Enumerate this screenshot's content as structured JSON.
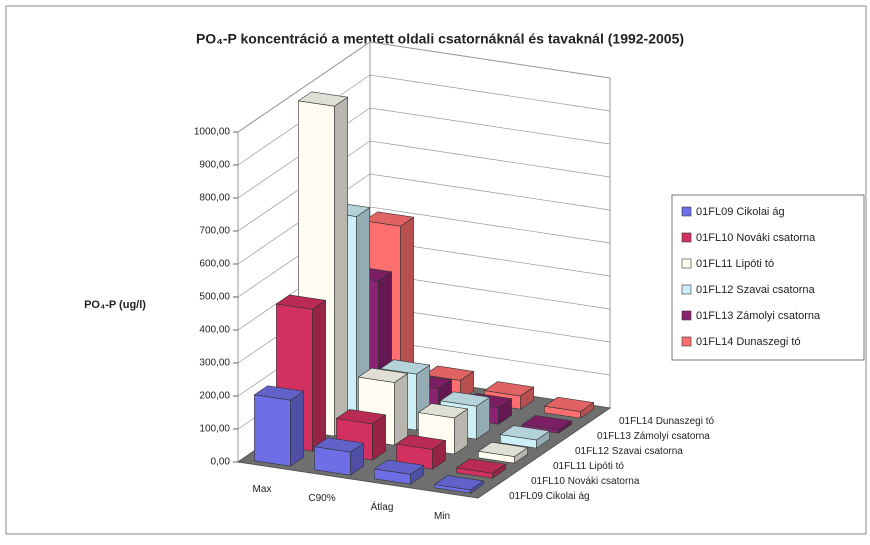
{
  "chart_data": {
    "type": "bar3d",
    "title": "PO₄-P koncentráció a mentett oldali csatornáknál és tavaknál (1992-2005)",
    "y_label": "PO₄-P (ug/l)",
    "categories": [
      "Max",
      "C90%",
      "Átlag",
      "Min"
    ],
    "series": [
      {
        "name": "01FL09 Cikolai ág",
        "color": "#6e6ee6",
        "values": [
          200,
          70,
          30,
          10
        ]
      },
      {
        "name": "01FL10 Nováki csatorna",
        "color": "#d23060",
        "values": [
          430,
          110,
          60,
          15
        ]
      },
      {
        "name": "01FL11 Lipóti tó",
        "color": "#fffdf2",
        "values": [
          1000,
          190,
          110,
          20
        ]
      },
      {
        "name": "01FL12 Szavai csatorna",
        "color": "#cdeff8",
        "values": [
          620,
          170,
          100,
          25
        ]
      },
      {
        "name": "01FL13 Zámolyi csatorna",
        "color": "#8c2272",
        "values": [
          380,
          80,
          50,
          10
        ]
      },
      {
        "name": "01FL14 Dunaszegi tó",
        "color": "#ff6f6f",
        "values": [
          500,
          60,
          40,
          20
        ]
      }
    ],
    "ylim": [
      0,
      1000
    ],
    "yticks": [
      {
        "value": 0,
        "label": "0,00"
      },
      {
        "value": 100,
        "label": "100,00"
      },
      {
        "value": 200,
        "label": "200,00"
      },
      {
        "value": 300,
        "label": "300,00"
      },
      {
        "value": 400,
        "label": "400,00"
      },
      {
        "value": 500,
        "label": "500,00"
      },
      {
        "value": 600,
        "label": "600,00"
      },
      {
        "value": 700,
        "label": "700,00"
      },
      {
        "value": 800,
        "label": "800,00"
      },
      {
        "value": 900,
        "label": "900,00"
      },
      {
        "value": 1000,
        "label": "1000,00"
      }
    ],
    "grid": true,
    "legend": "right"
  }
}
